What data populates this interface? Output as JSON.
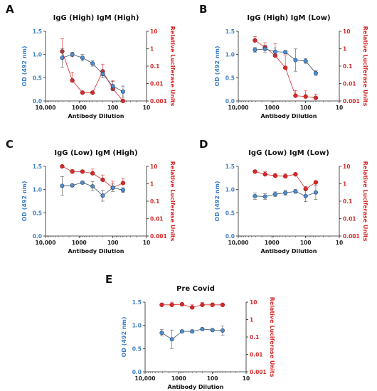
{
  "colors": {
    "od": "#3f7fc4",
    "od_marker": "#4a8fd6",
    "od_line": "#3a4f6a",
    "rlu": "#d42a2a",
    "axis": "#222222"
  },
  "shared": {
    "xlabel": "Antibody Dilution",
    "ylabel_left": "OD (492 nm)",
    "ylabel_right": "Relative Luciferase Units",
    "x_ticks": [
      "10,000",
      "1000",
      "100",
      "10"
    ],
    "y_left_ticks": [
      "0.0",
      "0.5",
      "1.0",
      "1.5"
    ],
    "y_right_ticks": [
      "0.001",
      "0.01",
      "0.1",
      "1",
      "10"
    ]
  },
  "chart_data": [
    {
      "type": "line",
      "panel": "A",
      "title": "IgG (High) IgM (High)",
      "x": [
        3200,
        1600,
        800,
        400,
        200,
        100,
        50
      ],
      "x_scale": "log-reversed",
      "xlim": [
        10000,
        10
      ],
      "ylim_left": [
        0,
        1.5
      ],
      "ylim_right": [
        0.001,
        10
      ],
      "series": [
        {
          "axis": "left",
          "values": [
            0.93,
            1.0,
            0.93,
            0.81,
            0.58,
            0.32,
            0.2
          ],
          "errors": [
            0.2,
            0.05,
            0.07,
            0.06,
            0.08,
            0.1,
            0.12
          ]
        },
        {
          "axis": "right",
          "values": [
            0.7,
            0.015,
            0.003,
            0.003,
            0.05,
            0.005,
            0.001
          ],
          "errors_up": [
            3.0,
            0.03,
            0.0,
            0.0,
            0.08,
            0.01,
            0.003
          ]
        }
      ]
    },
    {
      "type": "line",
      "panel": "B",
      "title": "IgG (High) IgM (Low)",
      "x": [
        3200,
        1600,
        800,
        400,
        200,
        100,
        50
      ],
      "x_scale": "log-reversed",
      "xlim": [
        10000,
        10
      ],
      "ylim_left": [
        0,
        1.5
      ],
      "ylim_right": [
        0.001,
        10
      ],
      "series": [
        {
          "axis": "left",
          "values": [
            1.1,
            1.12,
            1.06,
            1.05,
            0.88,
            0.86,
            0.6
          ],
          "errors": [
            0.05,
            0.08,
            0.08,
            0.04,
            0.24,
            0.05,
            0.05
          ]
        },
        {
          "axis": "right",
          "values": [
            3.0,
            1.2,
            0.4,
            0.08,
            0.002,
            0.0018,
            0.0015
          ],
          "errors_up": [
            2.0,
            1.0,
            1.5,
            0.3,
            0.002,
            0.002,
            0.001
          ]
        }
      ]
    },
    {
      "type": "line",
      "panel": "C",
      "title": "IgG (Low) IgM (High)",
      "x": [
        3200,
        1600,
        800,
        400,
        200,
        100,
        50
      ],
      "x_scale": "log-reversed",
      "xlim": [
        10000,
        10
      ],
      "ylim_left": [
        0,
        1.5
      ],
      "ylim_right": [
        0.001,
        10
      ],
      "series": [
        {
          "axis": "left",
          "values": [
            1.08,
            1.09,
            1.15,
            1.07,
            0.87,
            1.04,
            0.99
          ],
          "errors": [
            0.2,
            0.03,
            0.03,
            0.1,
            0.12,
            0.08,
            0.05
          ]
        },
        {
          "axis": "right",
          "values": [
            10,
            5.0,
            5.0,
            4.0,
            1.7,
            0.6,
            1.1
          ],
          "errors_up": [
            0.5,
            1.5,
            1.0,
            3.0,
            1.5,
            0.8,
            1.0
          ]
        }
      ]
    },
    {
      "type": "line",
      "panel": "D",
      "title": "IgG (Low) IgM (Low)",
      "x": [
        3200,
        1600,
        800,
        400,
        200,
        100,
        50
      ],
      "x_scale": "log-reversed",
      "xlim": [
        10000,
        10
      ],
      "ylim_left": [
        0,
        1.5
      ],
      "ylim_right": [
        0.001,
        10
      ],
      "series": [
        {
          "axis": "left",
          "values": [
            0.86,
            0.85,
            0.9,
            0.93,
            0.96,
            0.86,
            0.94
          ],
          "errors": [
            0.07,
            0.06,
            0.05,
            0.05,
            0.04,
            0.12,
            0.15
          ]
        },
        {
          "axis": "right",
          "values": [
            5.0,
            3.5,
            2.9,
            2.7,
            3.5,
            0.5,
            1.2
          ],
          "errors_up": [
            1.0,
            1.5,
            1.0,
            1.0,
            0.3,
            0.2,
            0.3
          ]
        }
      ]
    },
    {
      "type": "line",
      "panel": "E",
      "title": "Pre Covid",
      "x": [
        3200,
        1600,
        800,
        400,
        200,
        100,
        50
      ],
      "x_scale": "log-reversed",
      "xlim": [
        10000,
        10
      ],
      "ylim_left": [
        0,
        1.5
      ],
      "ylim_right": [
        0.001,
        10
      ],
      "series": [
        {
          "axis": "left",
          "values": [
            0.84,
            0.7,
            0.87,
            0.87,
            0.92,
            0.9,
            0.89
          ],
          "errors": [
            0.07,
            0.2,
            0.02,
            0.02,
            0.02,
            0.02,
            0.1
          ]
        },
        {
          "axis": "right",
          "values": [
            7.0,
            7.0,
            7.5,
            5.0,
            7.0,
            7.0,
            7.0
          ],
          "errors_up": [
            1.5,
            3.0,
            1.0,
            2.0,
            2.5,
            2.0,
            1.0
          ]
        }
      ]
    }
  ]
}
